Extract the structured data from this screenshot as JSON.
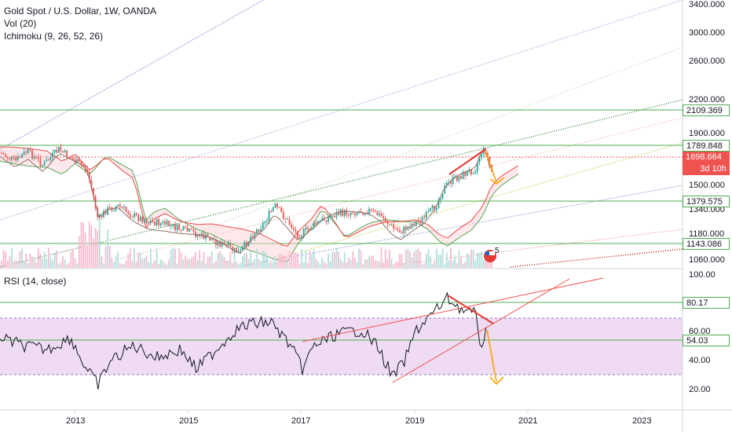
{
  "legend": {
    "symbol": "Gold Spot / U.S. Dollar, 1W, OANDA",
    "vol": "Vol (20)",
    "ichimoku": "Ichimoku (9, 26, 52, 26)",
    "rsi": "RSI (14, close)"
  },
  "price_axis": {
    "ticks": [
      "3400.000",
      "3000.000",
      "2600.000",
      "2200.000",
      "1900.000",
      "1500.000",
      "1340.000",
      "1180.000",
      "1060.000"
    ]
  },
  "rsi_axis": {
    "ticks": [
      "100.00",
      "60.00",
      "40.00",
      "20.00"
    ]
  },
  "time_axis": {
    "ticks": [
      "2013",
      "2015",
      "2017",
      "2019",
      "2021",
      "2023"
    ]
  },
  "price_labels": [
    {
      "text": "2109.369",
      "bg": "#ffffff",
      "color": "#131722",
      "border": "#4caf50"
    },
    {
      "text": "1789.848",
      "bg": "#ffffff",
      "color": "#131722",
      "border": "#4caf50"
    },
    {
      "text": "1698.664",
      "bg": "#ef5350",
      "color": "#ffffff",
      "border": "#ef5350"
    },
    {
      "text": "3d 10h",
      "bg": "#ef5350",
      "color": "#ffffff",
      "border": "#ef5350"
    },
    {
      "text": "1379.575",
      "bg": "#ffffff",
      "color": "#131722",
      "border": "#4caf50"
    },
    {
      "text": "1143.086",
      "bg": "#ffffff",
      "color": "#131722",
      "border": "#4caf50"
    }
  ],
  "rsi_labels": [
    {
      "text": "80.17",
      "bg": "#ffffff",
      "color": "#131722",
      "border": "#4caf50"
    },
    {
      "text": "54.03",
      "bg": "#ffffff",
      "color": "#131722",
      "border": "#4caf50"
    }
  ],
  "event_badge": "5",
  "colors": {
    "up": "#26a69a",
    "down": "#ef5350",
    "support": "#4caf50",
    "rsi_band": "#e1bee7",
    "arrow": "#ff9800"
  }
}
